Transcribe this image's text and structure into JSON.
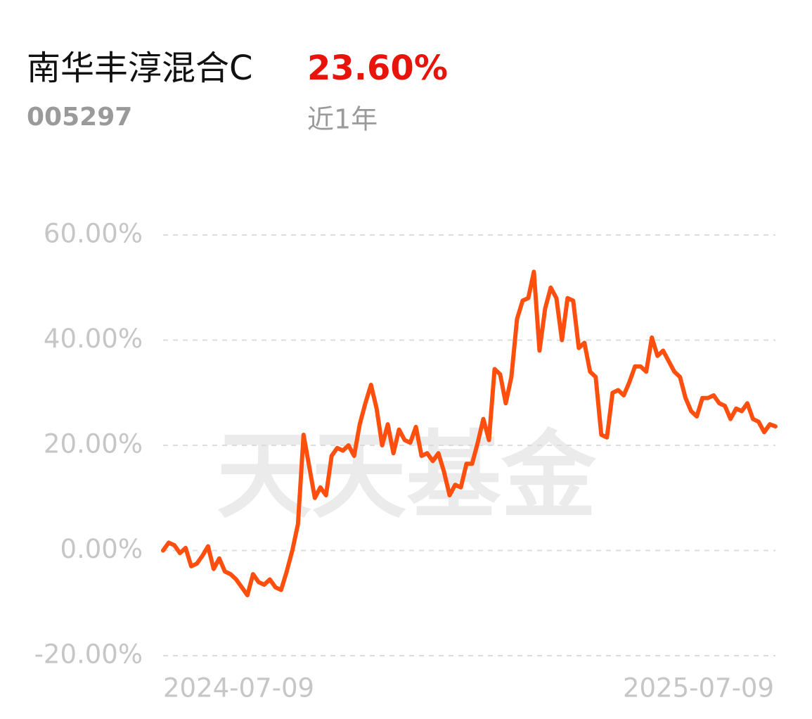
{
  "header": {
    "fund_name": "南华丰淳混合C",
    "fund_code": "005297",
    "return_label": "23.60%",
    "period": "近1年"
  },
  "chart_data": {
    "type": "line",
    "watermark": "天天基金",
    "categories": [
      "2024-07-09",
      null,
      null,
      null,
      null,
      null,
      null,
      null,
      null,
      null,
      null,
      null,
      null,
      null,
      null,
      null,
      null,
      null,
      null,
      null,
      null,
      null,
      null,
      null,
      null,
      null,
      null,
      null,
      null,
      null,
      null,
      null,
      null,
      null,
      null,
      null,
      null,
      null,
      null,
      null,
      null,
      null,
      null,
      null,
      null,
      null,
      null,
      null,
      null,
      null,
      null,
      null,
      null,
      null,
      null,
      null,
      null,
      null,
      null,
      null,
      null,
      null,
      null,
      null,
      null,
      null,
      null,
      null,
      null,
      null,
      null,
      null,
      null,
      null,
      null,
      null,
      null,
      null,
      null,
      null,
      null,
      null,
      null,
      null,
      null,
      null,
      null,
      null,
      null,
      null,
      null,
      null,
      null,
      null,
      null,
      null,
      null,
      null,
      null,
      null,
      null,
      null,
      null,
      null,
      null,
      null,
      null,
      null,
      null,
      "2025-07-09"
    ],
    "values": [
      0,
      1.5,
      1,
      -0.5,
      0.5,
      -3,
      -2.5,
      -1,
      0.8,
      -3.5,
      -1.5,
      -4,
      -4.5,
      -5.5,
      -7,
      -8.5,
      -4.5,
      -6,
      -6.5,
      -5.5,
      -7,
      -7.5,
      -4,
      0,
      5,
      22,
      16,
      10,
      12,
      10.5,
      18,
      19.5,
      19,
      20,
      18,
      24,
      28,
      31.5,
      27,
      20,
      24,
      18.5,
      23,
      21,
      20.5,
      23.5,
      18,
      18.5,
      17,
      18.5,
      15,
      10.5,
      12.5,
      12,
      16.5,
      16.5,
      20.5,
      25,
      21,
      34.5,
      33.5,
      28,
      33,
      44,
      47.5,
      48,
      53,
      38,
      46,
      50,
      48,
      40,
      48,
      47.5,
      38.5,
      39.5,
      34,
      33,
      22,
      21.5,
      30,
      30.5,
      29.5,
      32,
      35,
      35,
      34,
      40.5,
      37,
      38,
      36,
      34,
      33,
      29,
      26.5,
      25.5,
      29,
      29,
      29.5,
      28,
      27.5,
      25,
      27,
      26.5,
      28,
      25,
      24.5,
      22.5,
      24,
      23.6
    ],
    "color": "#ff4f0f",
    "ylim": [
      -20,
      60
    ],
    "yticks": [
      {
        "value": -20,
        "label": "-20.00%"
      },
      {
        "value": 0,
        "label": "0.00%"
      },
      {
        "value": 20,
        "label": "20.00%"
      },
      {
        "value": 40,
        "label": "40.00%"
      },
      {
        "value": 60,
        "label": "60.00%"
      }
    ],
    "grid": true
  }
}
